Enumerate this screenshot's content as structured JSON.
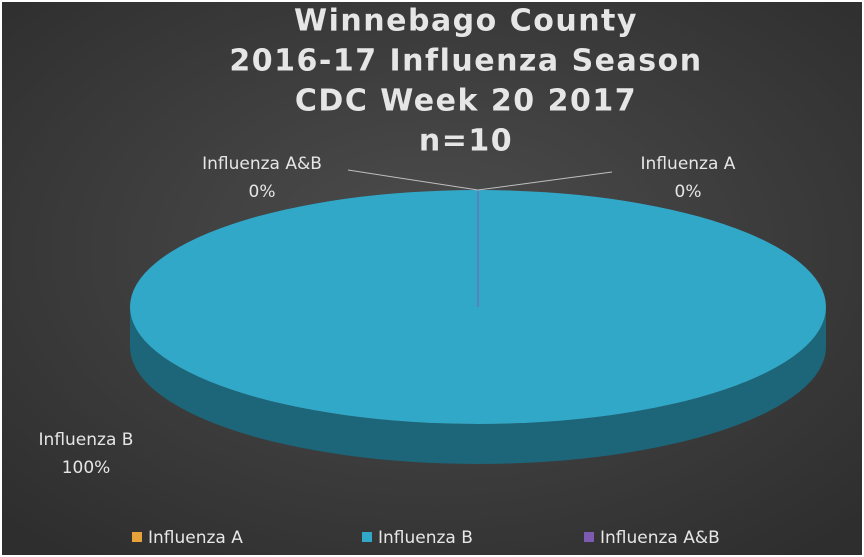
{
  "chart_data": {
    "type": "pie",
    "title": [
      "Winnebago County",
      "2016-17 Influenza Season",
      "CDC Week 20 2017",
      "n=10"
    ],
    "categories": [
      "Influenza A",
      "Influenza B",
      "Influenza A&B"
    ],
    "values": [
      0,
      100,
      0
    ],
    "value_labels": [
      "0%",
      "100%",
      "0%"
    ],
    "colors": [
      "#e8a23a",
      "#31a8c8",
      "#7d5bb2"
    ],
    "legend": "bottom"
  }
}
